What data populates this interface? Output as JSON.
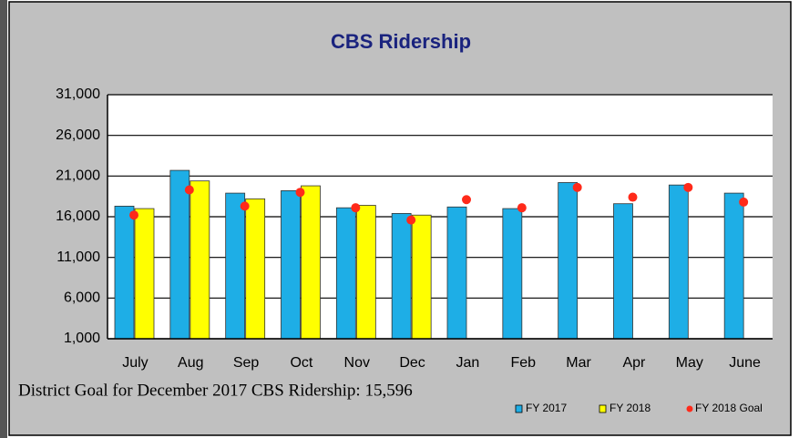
{
  "chart_data": {
    "type": "bar",
    "title": "CBS Ridership",
    "categories": [
      "July",
      "Aug",
      "Sep",
      "Oct",
      "Nov",
      "Dec",
      "Jan",
      "Feb",
      "Mar",
      "Apr",
      "May",
      "June"
    ],
    "series": [
      {
        "name": "FY 2017",
        "color": "#1eaee6",
        "values": [
          17300,
          21700,
          18900,
          19200,
          17100,
          16400,
          17200,
          17000,
          20200,
          17600,
          19900,
          18900
        ]
      },
      {
        "name": "FY 2018",
        "color": "#ffff00",
        "values": [
          17000,
          20400,
          18200,
          19800,
          17400,
          16200,
          null,
          null,
          null,
          null,
          null,
          null
        ]
      },
      {
        "name": "FY 2018 Goal",
        "color": "#ff2a1a",
        "kind": "point",
        "values": [
          16200,
          19300,
          17300,
          19000,
          17100,
          15596,
          18100,
          17100,
          19600,
          18400,
          19600,
          17800
        ]
      }
    ],
    "ylim": [
      1000,
      31000
    ],
    "yticks": [
      {
        "value": 1000,
        "label": "1,000"
      },
      {
        "value": 6000,
        "label": "6,000"
      },
      {
        "value": 11000,
        "label": "11,000"
      },
      {
        "value": 16000,
        "label": "16,000"
      },
      {
        "value": 21000,
        "label": "21,000"
      },
      {
        "value": 26000,
        "label": "26,000"
      },
      {
        "value": 31000,
        "label": "31,000"
      }
    ],
    "grid": true,
    "annotation": "District Goal for December 2017 CBS Ridership:  15,596",
    "legend": "bottom-right"
  }
}
